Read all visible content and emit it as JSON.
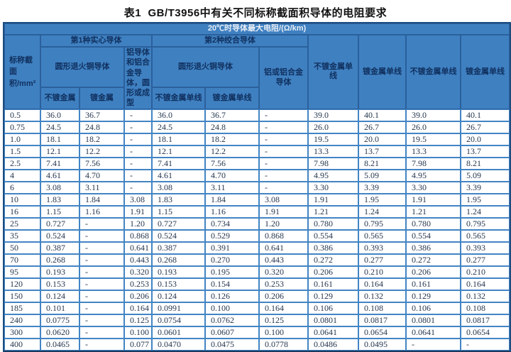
{
  "title": "表1  GB/T3956中有关不同标称截面积导体的电阻要求",
  "table": {
    "unit_header": "20℃时导体最大电阻/(Ω/km)",
    "headers": {
      "area": "标称截面积/mm²",
      "group_solid": "第1种实心导体",
      "group_stranded": "第2种绞合导体",
      "copper_round_solid": "圆形退火铜导体",
      "aluminium_solid": "铝导体和铝合金导体，圆形或成型",
      "copper_round_stranded": "圆形退火铜导体",
      "aluminium_stranded": "铝或铝合金导体",
      "plain_solid": "不镀金属",
      "coated_solid": "镀金属",
      "plain_wire_stranded": "不镀金属单线",
      "coated_wire_stranded": "镀金属单线",
      "col8_plain_wire": "不镀金属单线",
      "col9_coated_wire": "镀金属单线",
      "col10_plain_wire": "不镀金属单线",
      "col11_coated_wire": "镀金属单线"
    },
    "rows": [
      [
        "0.5",
        "36.0",
        "36.7",
        "-",
        "36.0",
        "36.7",
        "-",
        "39.0",
        "40.1",
        "39.0",
        "40.1"
      ],
      [
        "0.75",
        "24.5",
        "24.8",
        "-",
        "24.5",
        "24.8",
        "-",
        "26.0",
        "26.7",
        "26.0",
        "26.7"
      ],
      [
        "1.0",
        "18.1",
        "18.2",
        "-",
        "18.1",
        "18.2",
        "-",
        "19.5",
        "20.0",
        "19.5",
        "20.0"
      ],
      [
        "1.5",
        "12.1",
        "12.2",
        "-",
        "12.1",
        "12.2",
        "-",
        "13.3",
        "13.7",
        "13.3",
        "13.7"
      ],
      [
        "2.5",
        "7.41",
        "7.56",
        "-",
        "7.41",
        "7.56",
        "-",
        "7.98",
        "8.21",
        "7.98",
        "8.21"
      ],
      [
        "4",
        "4.61",
        "4.70",
        "-",
        "4.61",
        "4.70",
        "-",
        "4.95",
        "5.09",
        "4.95",
        "5.09"
      ],
      [
        "6",
        "3.08",
        "3.11",
        "-",
        "3.08",
        "3.11",
        "-",
        "3.30",
        "3.39",
        "3.30",
        "3.39"
      ],
      [
        "10",
        "1.83",
        "1.84",
        "3.08",
        "1.83",
        "1.84",
        "3.08",
        "1.91",
        "1.95",
        "1.91",
        "1.95"
      ],
      [
        "16",
        "1.15",
        "1.16",
        "1.91",
        "1.15",
        "1.16",
        "1.91",
        "1.21",
        "1.24",
        "1.21",
        "1.24"
      ],
      [
        "25",
        "0.727",
        "-",
        "1.20",
        "0.727",
        "0.734",
        "1.20",
        "0.780",
        "0.795",
        "0.780",
        "0.795"
      ],
      [
        "35",
        "0.524",
        "-",
        "0.868",
        "0.524",
        "0.529",
        "0.868",
        "0.554",
        "0.565",
        "0.554",
        "0.565"
      ],
      [
        "50",
        "0.387",
        "-",
        "0.641",
        "0.387",
        "0.391",
        "0.641",
        "0.386",
        "0.393",
        "0.386",
        "0.393"
      ],
      [
        "70",
        "0.268",
        "-",
        "0.443",
        "0.268",
        "0.270",
        "0.443",
        "0.272",
        "0.277",
        "0.272",
        "0.277"
      ],
      [
        "95",
        "0.193",
        "-",
        "0.320",
        "0.193",
        "0.195",
        "0.320",
        "0.206",
        "0.210",
        "0.206",
        "0.210"
      ],
      [
        "120",
        "0.153",
        "-",
        "0.253",
        "0.153",
        "0.154",
        "0.253",
        "0.161",
        "0.164",
        "0.161",
        "0.164"
      ],
      [
        "150",
        "0.124",
        "-",
        "0.206",
        "0.124",
        "0.126",
        "0.206",
        "0.129",
        "0.132",
        "0.129",
        "0.132"
      ],
      [
        "185",
        "0.101",
        "-",
        "0.164",
        "0.0991",
        "0.100",
        "0.164",
        "0.106",
        "0.108",
        "0.106",
        "0.108"
      ],
      [
        "240",
        "0.0775",
        "-",
        "0.125",
        "0.0754",
        "0.0762",
        "0.125",
        "0.0801",
        "0.0817",
        "0.0801",
        "0.0817"
      ],
      [
        "300",
        "0.0620",
        "-",
        "0.100",
        "0.0601",
        "0.0607",
        "0.100",
        "0.0641",
        "0.0654",
        "0.0641",
        "0.0654"
      ],
      [
        "400",
        "0.0465",
        "-",
        "0.077",
        "0.0470",
        "0.0475",
        "0.0778",
        "0.0486",
        "0.0495",
        "-",
        "-"
      ]
    ]
  },
  "colors": {
    "header_bg": "#3f80c1",
    "header_text": "#10305e",
    "unit_text": "#e9eef6",
    "grid_line": "#4284c4",
    "outer_border": "#1e4d80",
    "data_text": "#25364f"
  }
}
